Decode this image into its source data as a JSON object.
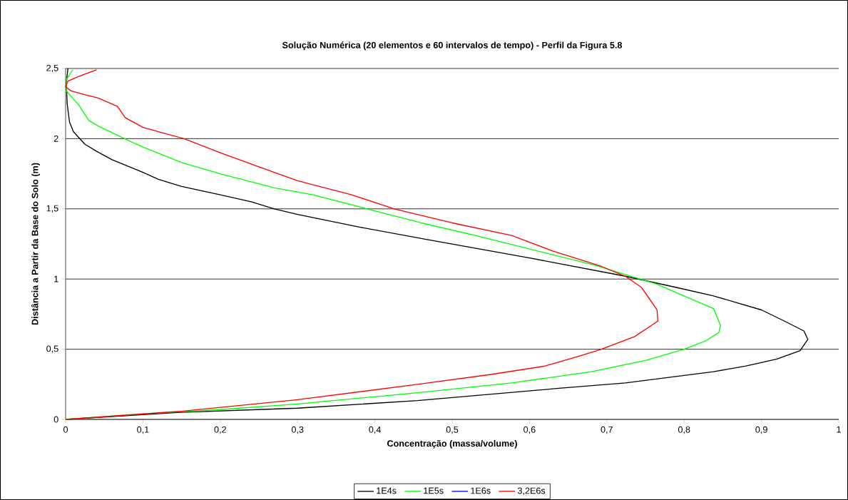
{
  "chart_data": {
    "type": "line",
    "title": "Solução Numérica (20 elementos e 60 intervalos de tempo) - Perfil da Figura 5.8",
    "xlabel": "Concentração (massa/volume)",
    "ylabel": "Distância a Partir da Base do Solo (m)",
    "xlim": [
      0,
      1
    ],
    "ylim": [
      0,
      2.5
    ],
    "xticks": [
      0,
      {
        "value": 0.1,
        "label": "0,1"
      },
      {
        "value": 0.2,
        "label": "0,2"
      },
      {
        "value": 0.3,
        "label": "0,3"
      },
      {
        "value": 0.4,
        "label": "0,4"
      },
      {
        "value": 0.5,
        "label": "0,5"
      },
      {
        "value": 0.6,
        "label": "0,6"
      },
      {
        "value": 0.7,
        "label": "0,7"
      },
      {
        "value": 0.8,
        "label": "0,8"
      },
      {
        "value": 0.9,
        "label": "0,9"
      },
      1
    ],
    "yticks": [
      0,
      {
        "value": 0.5,
        "label": "0,5"
      },
      1,
      {
        "value": 1.5,
        "label": "1,5"
      },
      2,
      {
        "value": 2.5,
        "label": "2,5"
      }
    ],
    "grid": "y",
    "legend": "bottom",
    "marker": "none",
    "line_style": "solid",
    "series": [
      {
        "name": "1E4s",
        "color": "#000000",
        "x": [
          0,
          0.148,
          0.3,
          0.455,
          0.635,
          0.724,
          0.838,
          0.88,
          0.92,
          0.95,
          0.96,
          0.955,
          0.93,
          0.9,
          0.838,
          0.79,
          0.724,
          0.6,
          0.469,
          0.38,
          0.3,
          0.27,
          0.24,
          0.2,
          0.15,
          0.12,
          0.1,
          0.06,
          0.04,
          0.025,
          0.01,
          0.005,
          0.002,
          0.001,
          0.003
        ],
        "values": [
          0,
          0.05,
          0.08,
          0.134,
          0.22,
          0.26,
          0.34,
          0.38,
          0.43,
          0.49,
          0.57,
          0.63,
          0.7,
          0.78,
          0.88,
          0.94,
          1.02,
          1.15,
          1.28,
          1.37,
          1.46,
          1.5,
          1.55,
          1.6,
          1.66,
          1.71,
          1.76,
          1.85,
          1.91,
          1.96,
          2.05,
          2.12,
          2.25,
          2.4,
          2.5
        ]
      },
      {
        "name": "1E5s",
        "color": "#00ff00",
        "x": [
          0,
          0.1,
          0.2,
          0.3,
          0.455,
          0.577,
          0.68,
          0.75,
          0.8,
          0.828,
          0.845,
          0.847,
          0.838,
          0.764,
          0.684,
          0.53,
          0.46,
          0.39,
          0.32,
          0.27,
          0.2,
          0.15,
          0.1,
          0.08,
          0.042,
          0.03,
          0.017,
          0.001,
          0.001,
          0.009
        ],
        "values": [
          0,
          0.04,
          0.07,
          0.11,
          0.19,
          0.26,
          0.34,
          0.42,
          0.5,
          0.56,
          0.62,
          0.67,
          0.79,
          0.965,
          1.1,
          1.31,
          1.4,
          1.5,
          1.6,
          1.65,
          1.75,
          1.83,
          1.94,
          1.99,
          2.09,
          2.13,
          2.24,
          2.34,
          2.42,
          2.49
        ]
      },
      {
        "name": "1E6s",
        "color": "#0000ff",
        "values": [
          null
        ]
      },
      {
        "name": "3,2E6s",
        "color": "#ff0000",
        "x": [
          0,
          0.148,
          0.3,
          0.455,
          0.55,
          0.62,
          0.67,
          0.693,
          0.736,
          0.766,
          0.765,
          0.755,
          0.745,
          0.724,
          0.693,
          0.63,
          0.577,
          0.5,
          0.425,
          0.37,
          0.3,
          0.25,
          0.2,
          0.153,
          0.12,
          0.1,
          0.077,
          0.067,
          0.042,
          0.02,
          0.007,
          0.0,
          0.003,
          0.02,
          0.04
        ],
        "values": [
          0,
          0.057,
          0.14,
          0.25,
          0.32,
          0.38,
          0.46,
          0.5,
          0.59,
          0.7,
          0.78,
          0.86,
          0.94,
          1.02,
          1.09,
          1.2,
          1.31,
          1.4,
          1.5,
          1.6,
          1.7,
          1.8,
          1.9,
          2.0,
          2.05,
          2.08,
          2.15,
          2.23,
          2.29,
          2.32,
          2.34,
          2.37,
          2.41,
          2.45,
          2.49
        ]
      }
    ]
  }
}
